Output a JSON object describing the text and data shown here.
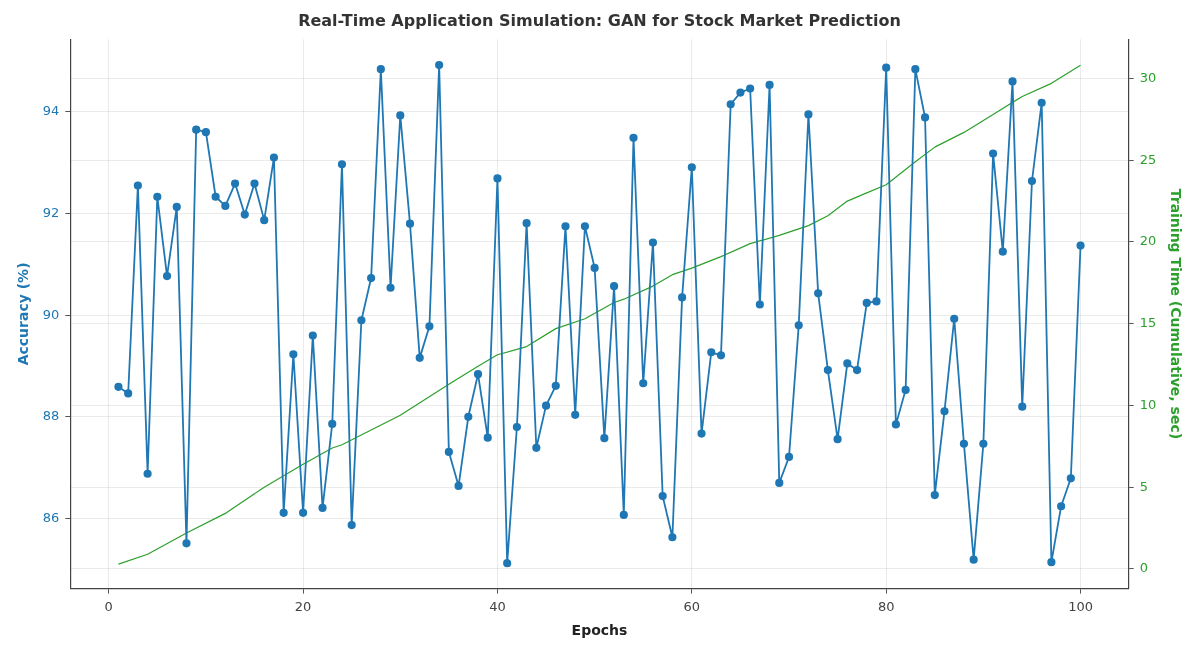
{
  "chart_data": {
    "type": "line",
    "title": "Real-Time Application Simulation: GAN for Stock Market Prediction",
    "xlabel": "Epochs",
    "ylabel": "Accuracy (%)",
    "y2label": "Training Time (Cumulative, sec)",
    "x": [
      1,
      2,
      3,
      4,
      5,
      6,
      7,
      8,
      9,
      10,
      11,
      12,
      13,
      14,
      15,
      16,
      17,
      18,
      19,
      20,
      21,
      22,
      23,
      24,
      25,
      26,
      27,
      28,
      29,
      30,
      31,
      32,
      33,
      34,
      35,
      36,
      37,
      38,
      39,
      40,
      41,
      42,
      43,
      44,
      45,
      46,
      47,
      48,
      49,
      50,
      51,
      52,
      53,
      54,
      55,
      56,
      57,
      58,
      59,
      60,
      61,
      62,
      63,
      64,
      65,
      66,
      67,
      68,
      69,
      70,
      71,
      72,
      73,
      74,
      75,
      76,
      77,
      78,
      79,
      80,
      81,
      82,
      83,
      84,
      85,
      86,
      87,
      88,
      89,
      90,
      91,
      92,
      93,
      94,
      95,
      96,
      97,
      98,
      99,
      100
    ],
    "series": [
      {
        "color": "#1f77b4",
        "marker": "circle",
        "values": [
          88.59,
          88.46,
          92.55,
          86.88,
          92.33,
          90.77,
          92.13,
          85.51,
          93.65,
          93.6,
          92.33,
          92.15,
          92.59,
          91.98,
          92.59,
          91.87,
          93.1,
          86.11,
          89.23,
          86.11,
          89.6,
          86.21,
          87.86,
          92.97,
          85.87,
          89.9,
          90.73,
          94.84,
          90.54,
          93.93,
          91.8,
          89.16,
          89.78,
          94.92,
          87.31,
          86.64,
          88.0,
          88.84,
          87.59,
          92.69,
          85.12,
          87.8,
          91.81,
          87.39,
          88.22,
          88.61,
          91.75,
          88.04,
          91.75,
          90.93,
          87.58,
          90.57,
          86.07,
          93.49,
          88.66,
          91.43,
          86.44,
          85.63,
          90.35,
          92.91,
          87.67,
          89.27,
          89.21,
          94.15,
          94.38,
          94.46,
          90.21,
          94.53,
          86.7,
          87.21,
          89.8,
          93.95,
          90.43,
          88.92,
          87.56,
          89.05,
          88.92,
          90.24,
          90.27,
          94.87,
          87.85,
          88.53,
          94.84,
          93.89,
          86.46,
          88.11,
          89.93,
          87.47,
          85.19,
          87.47,
          93.18,
          91.25,
          94.6,
          88.2,
          92.64,
          94.18,
          85.14,
          86.24,
          86.79,
          91.37
        ]
      },
      {
        "type": "line",
        "axis": "y2",
        "color": "#2ca02c",
        "marker": "none",
        "x": [
          1,
          4,
          8,
          12,
          16,
          20,
          23,
          24,
          30,
          35,
          38,
          40,
          43,
          46,
          49,
          52,
          53,
          56,
          58,
          60,
          63,
          66,
          69,
          72,
          74,
          76,
          78,
          80,
          83,
          85,
          88,
          91,
          94,
          97,
          100
        ],
        "values": [
          0.3,
          0.9,
          2.2,
          3.4,
          5.0,
          6.4,
          7.4,
          7.6,
          9.4,
          11.3,
          12.4,
          13.1,
          13.6,
          14.7,
          15.3,
          16.3,
          16.5,
          17.3,
          18.0,
          18.4,
          19.1,
          19.9,
          20.4,
          21.0,
          21.6,
          22.5,
          23.0,
          23.5,
          24.9,
          25.8,
          26.7,
          27.8,
          28.9,
          29.7,
          30.8
        ]
      }
    ],
    "xlim": [
      -3.95,
      104.95
    ],
    "xticks": [
      0,
      20,
      40,
      60,
      80,
      100
    ],
    "ylim": [
      84.62,
      95.43
    ],
    "yticks": [
      86,
      88,
      90,
      92,
      94
    ],
    "y2lim": [
      -1.2,
      32.4
    ],
    "y2ticks": [
      0,
      5,
      10,
      15,
      20,
      25,
      30
    ],
    "grid": true,
    "legend": false
  }
}
